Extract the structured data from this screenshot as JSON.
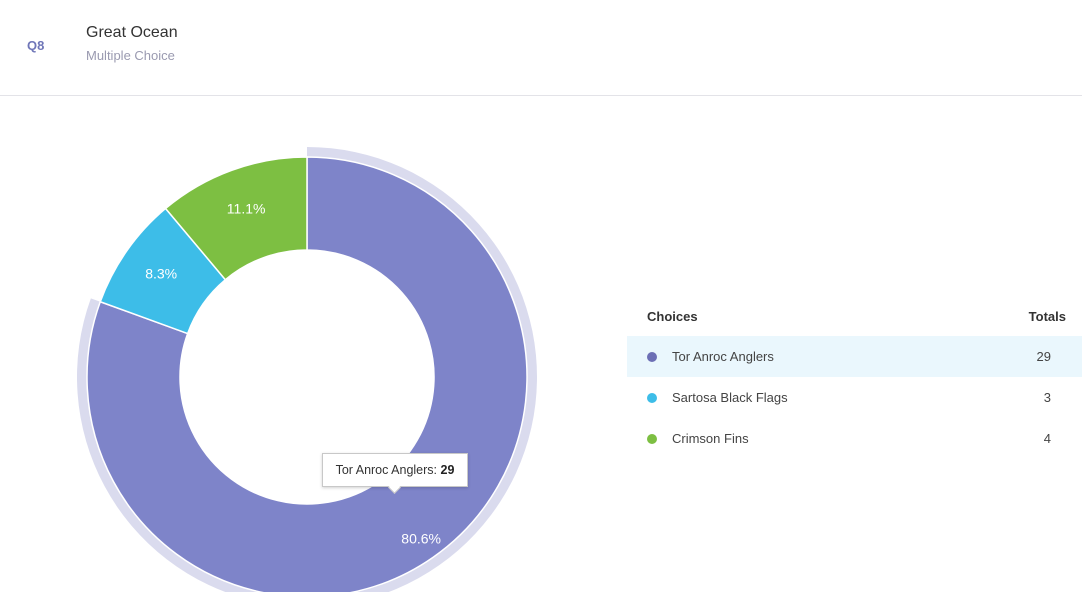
{
  "question": {
    "number": "Q8",
    "title": "Great Ocean",
    "type": "Multiple Choice"
  },
  "chart_data": {
    "type": "pie",
    "categories": [
      "Tor Anroc Anglers",
      "Sartosa Black Flags",
      "Crimson Fins"
    ],
    "values": [
      29,
      3,
      4
    ],
    "percent_labels": [
      "80.6%",
      "8.3%",
      "11.1%"
    ],
    "colors": [
      "#7e84c9",
      "#3dbde8",
      "#7dbf42"
    ],
    "highlight_index": 0,
    "tooltip": {
      "label": "Tor Anroc Anglers:",
      "value": "29"
    }
  },
  "table": {
    "header_choices": "Choices",
    "header_totals": "Totals",
    "rows": [
      {
        "label": "Tor Anroc Anglers",
        "total": "29",
        "color": "#6c6fb5"
      },
      {
        "label": "Sartosa Black Flags",
        "total": "3",
        "color": "#3dbde8"
      },
      {
        "label": "Crimson Fins",
        "total": "4",
        "color": "#7dbf42"
      }
    ]
  }
}
